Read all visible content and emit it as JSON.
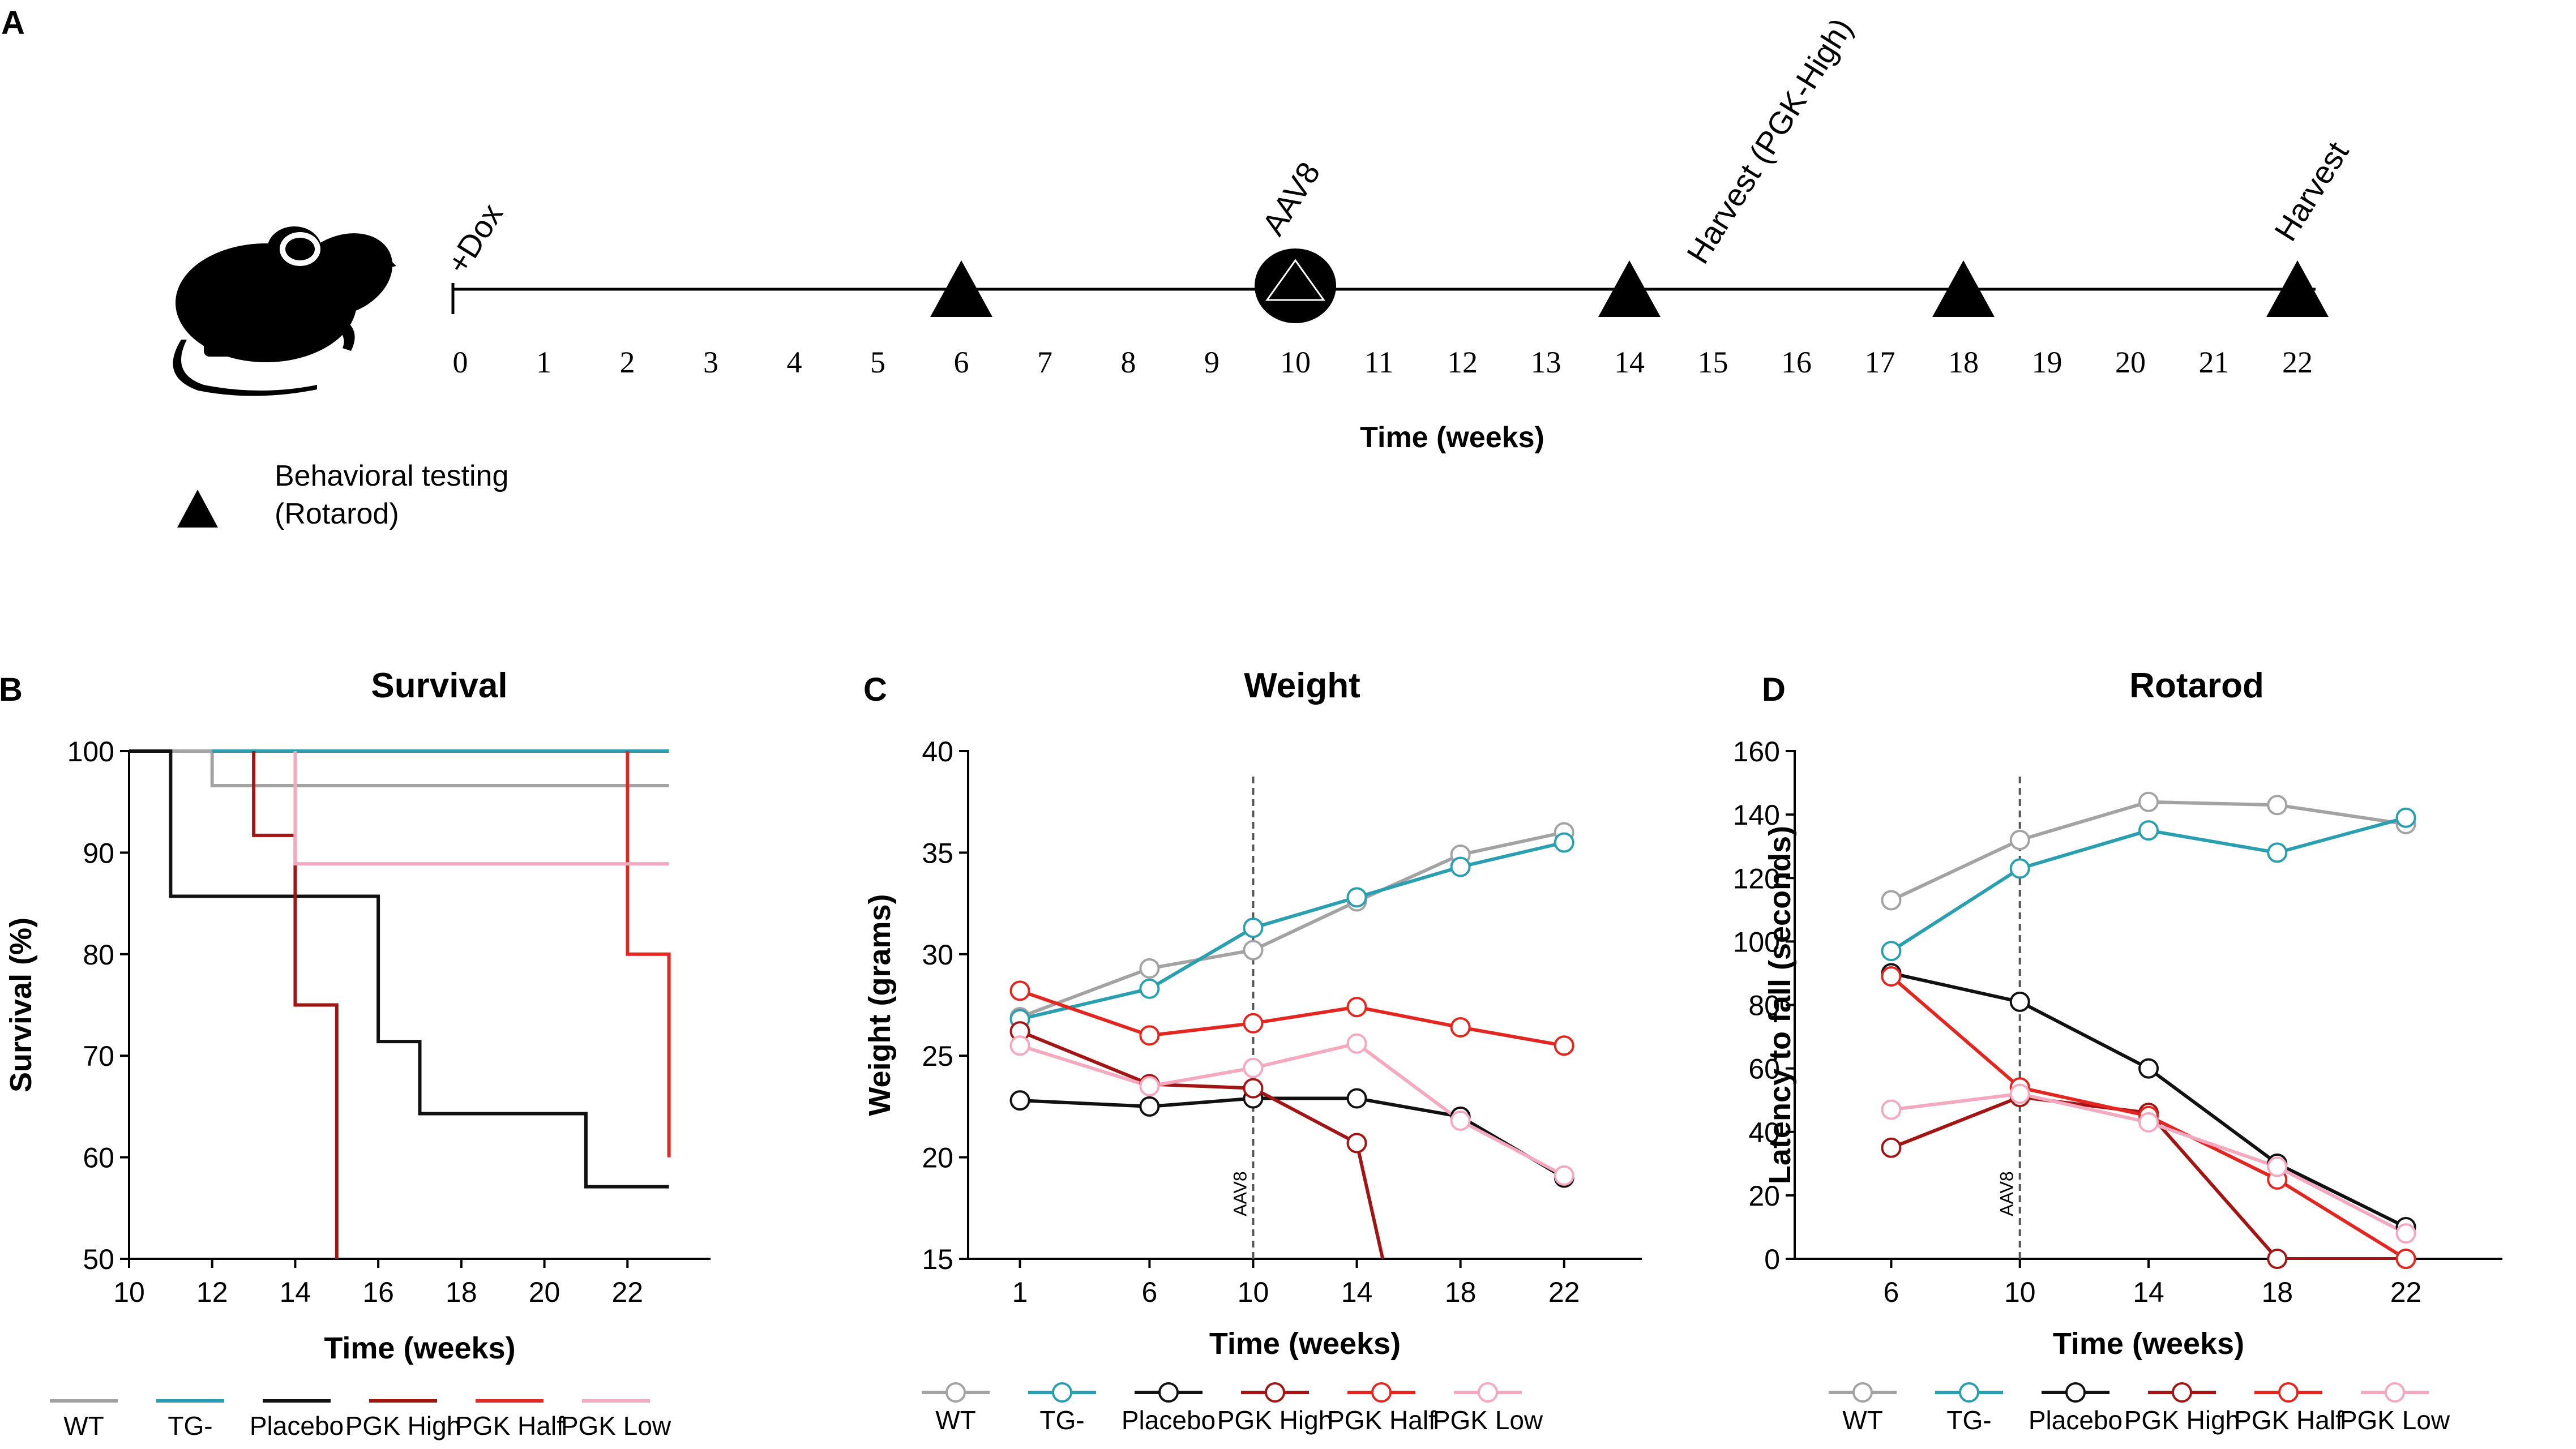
{
  "panel_a": {
    "label": "A",
    "ticks": [
      "0",
      "1",
      "2",
      "3",
      "4",
      "5",
      "6",
      "7",
      "8",
      "9",
      "10",
      "11",
      "12",
      "13",
      "14",
      "15",
      "16",
      "17",
      "18",
      "19",
      "20",
      "21",
      "22"
    ],
    "axis_title": "Time (weeks)",
    "events": [
      {
        "week": 0,
        "label": "+Dox"
      },
      {
        "week": 10,
        "label": "AAV8"
      },
      {
        "week": 15,
        "label": "Harvest (PGK-High)"
      },
      {
        "week": 22,
        "label": "Harvest"
      }
    ],
    "behavior_weeks": [
      6,
      10,
      14,
      18,
      22
    ],
    "legend_line1": "Behavioral testing",
    "legend_line2": "(Rotarod)",
    "mouse_icon": "mouse-silhouette-icon",
    "triangle_icon": "triangle-marker-icon"
  },
  "colors": {
    "WT": "#a3a3a3",
    "TG-": "#2a9fb0",
    "Placebo": "#111111",
    "PGK High": "#a11515",
    "PGK Half": "#e3261f",
    "PGK Low": "#f4a9bf"
  },
  "chart_data": [
    {
      "type": "line",
      "label": "B",
      "title": "Survival",
      "xlabel": "Time (weeks)",
      "ylabel": "Survival (%)",
      "xlim": [
        10,
        24
      ],
      "ylim": [
        50,
        100
      ],
      "xticks": [
        10,
        12,
        14,
        16,
        18,
        20,
        22
      ],
      "yticks": [
        50,
        60,
        70,
        80,
        90,
        100
      ],
      "step": true,
      "series": [
        {
          "name": "WT",
          "x": [
            10,
            12,
            12,
            23
          ],
          "y": [
            100,
            100,
            96.6,
            96.6
          ]
        },
        {
          "name": "TG-",
          "x": [
            12,
            23
          ],
          "y": [
            100,
            100
          ]
        },
        {
          "name": "Placebo",
          "x": [
            10,
            11,
            11,
            16,
            16,
            17,
            17,
            21,
            21,
            23
          ],
          "y": [
            100,
            100,
            85.7,
            85.7,
            71.4,
            71.4,
            64.3,
            64.3,
            57.1,
            57.1
          ]
        },
        {
          "name": "PGK High",
          "x": [
            13,
            13,
            14,
            14,
            15,
            15
          ],
          "y": [
            100,
            91.7,
            91.7,
            75,
            75,
            50
          ]
        },
        {
          "name": "PGK Half",
          "x": [
            22,
            22,
            23,
            23
          ],
          "y": [
            100,
            80,
            80,
            60
          ]
        },
        {
          "name": "PGK Low",
          "x": [
            14,
            14,
            23
          ],
          "y": [
            100,
            88.9,
            88.9
          ]
        }
      ],
      "legend": [
        "WT",
        "TG-",
        "Placebo",
        "PGK High",
        "PGK Half",
        "PGK Low"
      ]
    },
    {
      "type": "line",
      "label": "C",
      "title": "Weight",
      "xlabel": "Time (weeks)",
      "ylabel": "Weight (grams)",
      "xlim": [
        -1,
        25
      ],
      "ylim": [
        15,
        40
      ],
      "xticks": [
        1,
        6,
        10,
        14,
        18,
        22
      ],
      "yticks": [
        15,
        20,
        25,
        30,
        35,
        40
      ],
      "vline": {
        "x": 10,
        "label": "AAV8"
      },
      "series": [
        {
          "name": "WT",
          "x": [
            1,
            6,
            10,
            14,
            18,
            22
          ],
          "y": [
            26.9,
            29.3,
            30.2,
            32.6,
            34.9,
            36.0
          ]
        },
        {
          "name": "TG-",
          "x": [
            1,
            6,
            10,
            14,
            18,
            22
          ],
          "y": [
            26.8,
            28.3,
            31.3,
            32.8,
            34.3,
            35.5
          ]
        },
        {
          "name": "Placebo",
          "x": [
            1,
            6,
            10,
            14,
            18,
            22
          ],
          "y": [
            22.8,
            22.5,
            22.9,
            22.9,
            22.0,
            19.0
          ]
        },
        {
          "name": "PGK High",
          "x": [
            1,
            6,
            10,
            14,
            15
          ],
          "y": [
            26.2,
            23.6,
            23.4,
            20.7,
            15.0
          ]
        },
        {
          "name": "PGK Half",
          "x": [
            1,
            6,
            10,
            14,
            18,
            22
          ],
          "y": [
            28.2,
            26.0,
            26.6,
            27.4,
            26.4,
            25.5
          ]
        },
        {
          "name": "PGK Low",
          "x": [
            1,
            6,
            10,
            14,
            18,
            22
          ],
          "y": [
            25.5,
            23.5,
            24.4,
            25.6,
            21.8,
            19.1
          ]
        }
      ],
      "legend": [
        "WT",
        "TG-",
        "Placebo",
        "PGK High",
        "PGK Half",
        "PGK Low"
      ]
    },
    {
      "type": "line",
      "label": "D",
      "title": "Rotarod",
      "xlabel": "Time (weeks)",
      "ylabel": "Latency to fall (seconds)",
      "xlim": [
        3,
        25
      ],
      "ylim": [
        0,
        160
      ],
      "xticks": [
        6,
        10,
        14,
        18,
        22
      ],
      "yticks": [
        0,
        20,
        40,
        60,
        80,
        100,
        120,
        140,
        160
      ],
      "vline": {
        "x": 10,
        "label": "AAV8"
      },
      "series": [
        {
          "name": "WT",
          "x": [
            6,
            10,
            14,
            18,
            22
          ],
          "y": [
            113,
            132,
            144,
            143,
            137
          ]
        },
        {
          "name": "TG-",
          "x": [
            6,
            10,
            14,
            18,
            22
          ],
          "y": [
            97,
            123,
            135,
            128,
            139
          ]
        },
        {
          "name": "Placebo",
          "x": [
            6,
            10,
            14,
            18,
            22
          ],
          "y": [
            90,
            81,
            60,
            30,
            10
          ]
        },
        {
          "name": "PGK High",
          "x": [
            6,
            10,
            14,
            18,
            22
          ],
          "y": [
            35,
            51,
            46,
            0,
            0
          ]
        },
        {
          "name": "PGK Half",
          "x": [
            6,
            10,
            14,
            18,
            22
          ],
          "y": [
            89,
            54,
            45,
            25,
            0
          ]
        },
        {
          "name": "PGK Low",
          "x": [
            6,
            10,
            14,
            18,
            22
          ],
          "y": [
            47,
            52,
            43,
            29,
            8
          ]
        }
      ],
      "legend": [
        "WT",
        "TG-",
        "Placebo",
        "PGK High",
        "PGK Half",
        "PGK Low"
      ]
    }
  ]
}
